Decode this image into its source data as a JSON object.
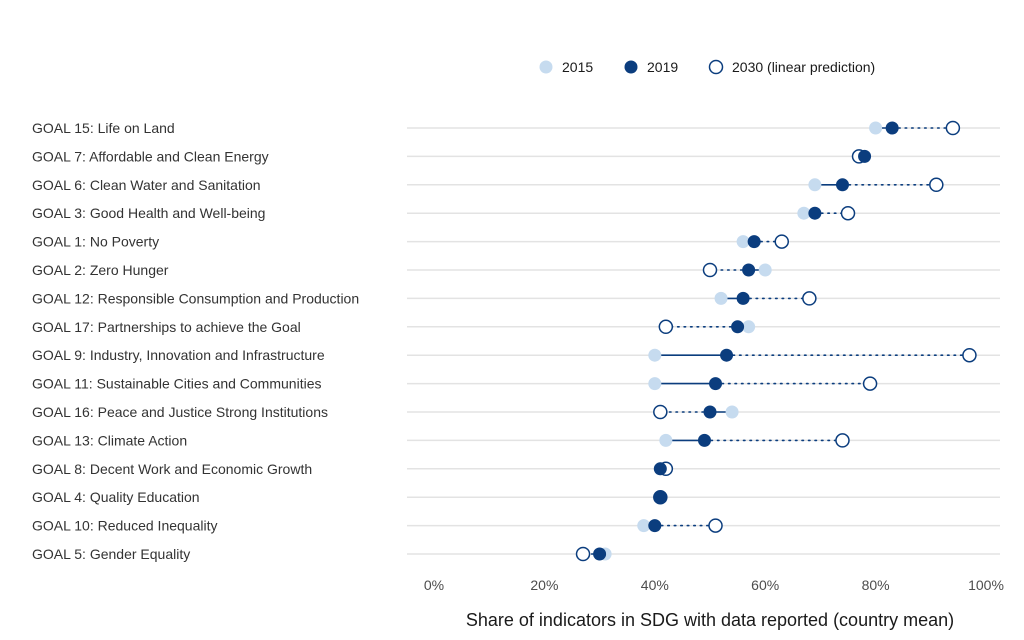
{
  "chart_data": {
    "type": "dumbbell",
    "xlabel": "Share of indicators in SDG with data reported (country mean)",
    "xlim": [
      0,
      1
    ],
    "xticks": [
      0,
      0.2,
      0.4,
      0.6,
      0.8,
      1.0
    ],
    "xtick_labels": [
      "0%",
      "20%",
      "40%",
      "60%",
      "80%",
      "100%"
    ],
    "legend_position": "top-right",
    "series": [
      {
        "key": "v2015",
        "name": "2015",
        "color": "#c6dbef",
        "style": "filled"
      },
      {
        "key": "v2019",
        "name": "2019",
        "color": "#0b3d7e",
        "style": "filled"
      },
      {
        "key": "v2030",
        "name": "2030 (linear prediction)",
        "color": "#0b3d7e",
        "style": "hollow"
      }
    ],
    "goals": [
      {
        "label": "GOAL 15: Life on Land",
        "v2015": 0.8,
        "v2019": 0.83,
        "v2030": 0.94
      },
      {
        "label": "GOAL 7: Affordable and Clean Energy",
        "v2015": 0.78,
        "v2019": 0.78,
        "v2030": 0.77
      },
      {
        "label": "GOAL 6: Clean Water and Sanitation",
        "v2015": 0.69,
        "v2019": 0.74,
        "v2030": 0.91
      },
      {
        "label": "GOAL 3: Good Health and Well-being",
        "v2015": 0.67,
        "v2019": 0.69,
        "v2030": 0.75
      },
      {
        "label": "GOAL 1: No Poverty",
        "v2015": 0.56,
        "v2019": 0.58,
        "v2030": 0.63
      },
      {
        "label": "GOAL 2: Zero Hunger",
        "v2015": 0.6,
        "v2019": 0.57,
        "v2030": 0.5
      },
      {
        "label": "GOAL 12: Responsible Consumption and Production",
        "v2015": 0.52,
        "v2019": 0.56,
        "v2030": 0.68
      },
      {
        "label": "GOAL 17: Partnerships to achieve the Goal",
        "v2015": 0.57,
        "v2019": 0.55,
        "v2030": 0.42
      },
      {
        "label": "GOAL 9: Industry, Innovation and Infrastructure",
        "v2015": 0.4,
        "v2019": 0.53,
        "v2030": 0.97
      },
      {
        "label": "GOAL 11: Sustainable Cities and Communities",
        "v2015": 0.4,
        "v2019": 0.51,
        "v2030": 0.79
      },
      {
        "label": "GOAL 16: Peace and Justice Strong Institutions",
        "v2015": 0.54,
        "v2019": 0.5,
        "v2030": 0.41
      },
      {
        "label": "GOAL 13: Climate Action",
        "v2015": 0.42,
        "v2019": 0.49,
        "v2030": 0.74
      },
      {
        "label": "GOAL 8: Decent Work and Economic Growth",
        "v2015": 0.41,
        "v2019": 0.41,
        "v2030": 0.42
      },
      {
        "label": "GOAL 4: Quality Education",
        "v2015": 0.41,
        "v2019": 0.41,
        "v2030": 0.41
      },
      {
        "label": "GOAL 10: Reduced Inequality",
        "v2015": 0.38,
        "v2019": 0.4,
        "v2030": 0.51
      },
      {
        "label": "GOAL 5: Gender Equality",
        "v2015": 0.31,
        "v2019": 0.3,
        "v2030": 0.27
      }
    ]
  }
}
